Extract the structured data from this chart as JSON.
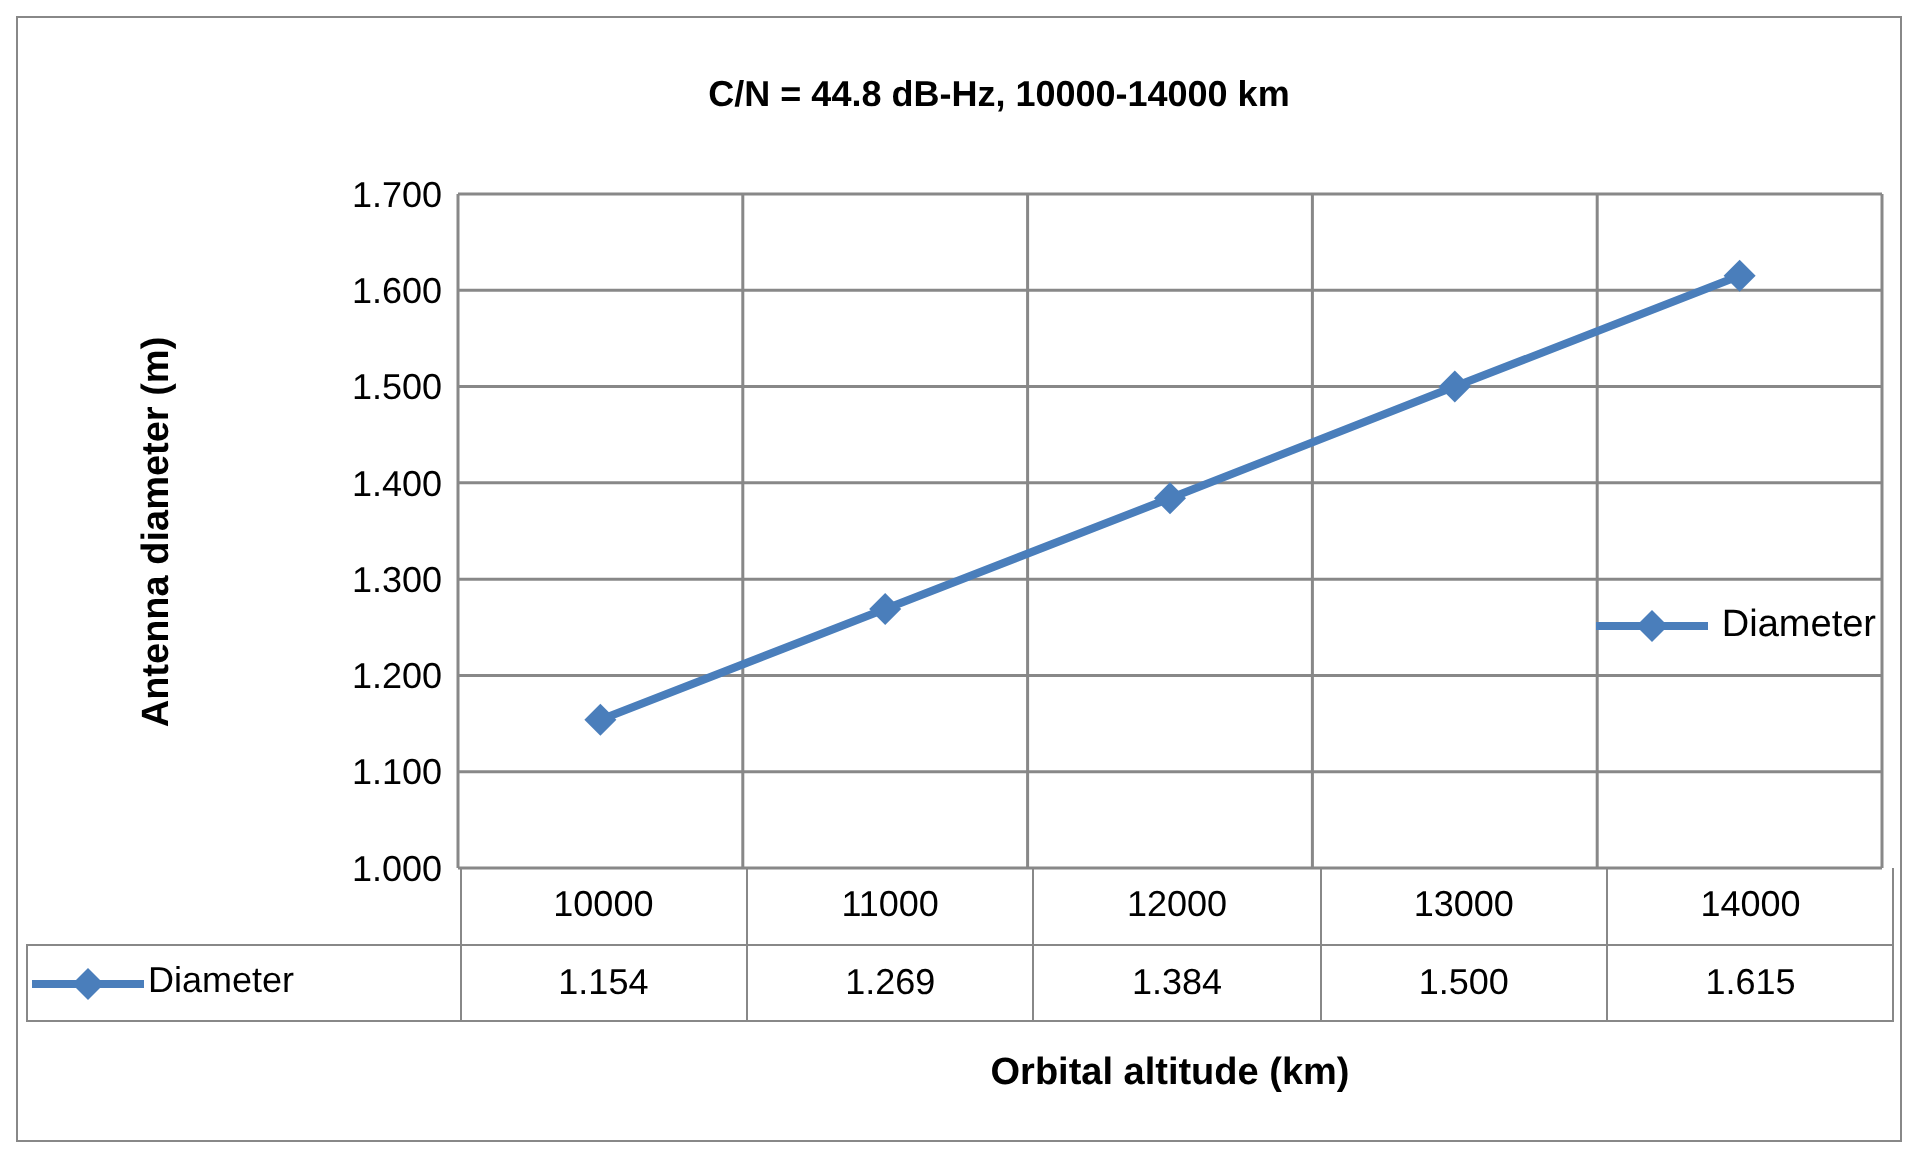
{
  "chart_data": {
    "type": "line",
    "title": "C/N = 44.8 dB-Hz, 10000-14000 km",
    "xlabel": "Orbital altitude (km)",
    "ylabel": "Antenna diameter (m)",
    "categories": [
      "10000",
      "11000",
      "12000",
      "13000",
      "14000"
    ],
    "series": [
      {
        "name": "Diameter",
        "color": "#4a7ebb",
        "values": [
          1.154,
          1.269,
          1.384,
          1.5,
          1.615
        ],
        "value_labels": [
          "1.154",
          "1.269",
          "1.384",
          "1.500",
          "1.615"
        ]
      }
    ],
    "ylim": [
      1.0,
      1.7
    ],
    "yticks": [
      {
        "value": 1.0,
        "label": "1.000"
      },
      {
        "value": 1.1,
        "label": "1.100"
      },
      {
        "value": 1.2,
        "label": "1.200"
      },
      {
        "value": 1.3,
        "label": "1.300"
      },
      {
        "value": 1.4,
        "label": "1.400"
      },
      {
        "value": 1.5,
        "label": "1.500"
      },
      {
        "value": 1.6,
        "label": "1.600"
      },
      {
        "value": 1.7,
        "label": "1.700"
      }
    ],
    "grid": true,
    "legend": "right",
    "marker": "diamond",
    "line_style": "solid"
  }
}
